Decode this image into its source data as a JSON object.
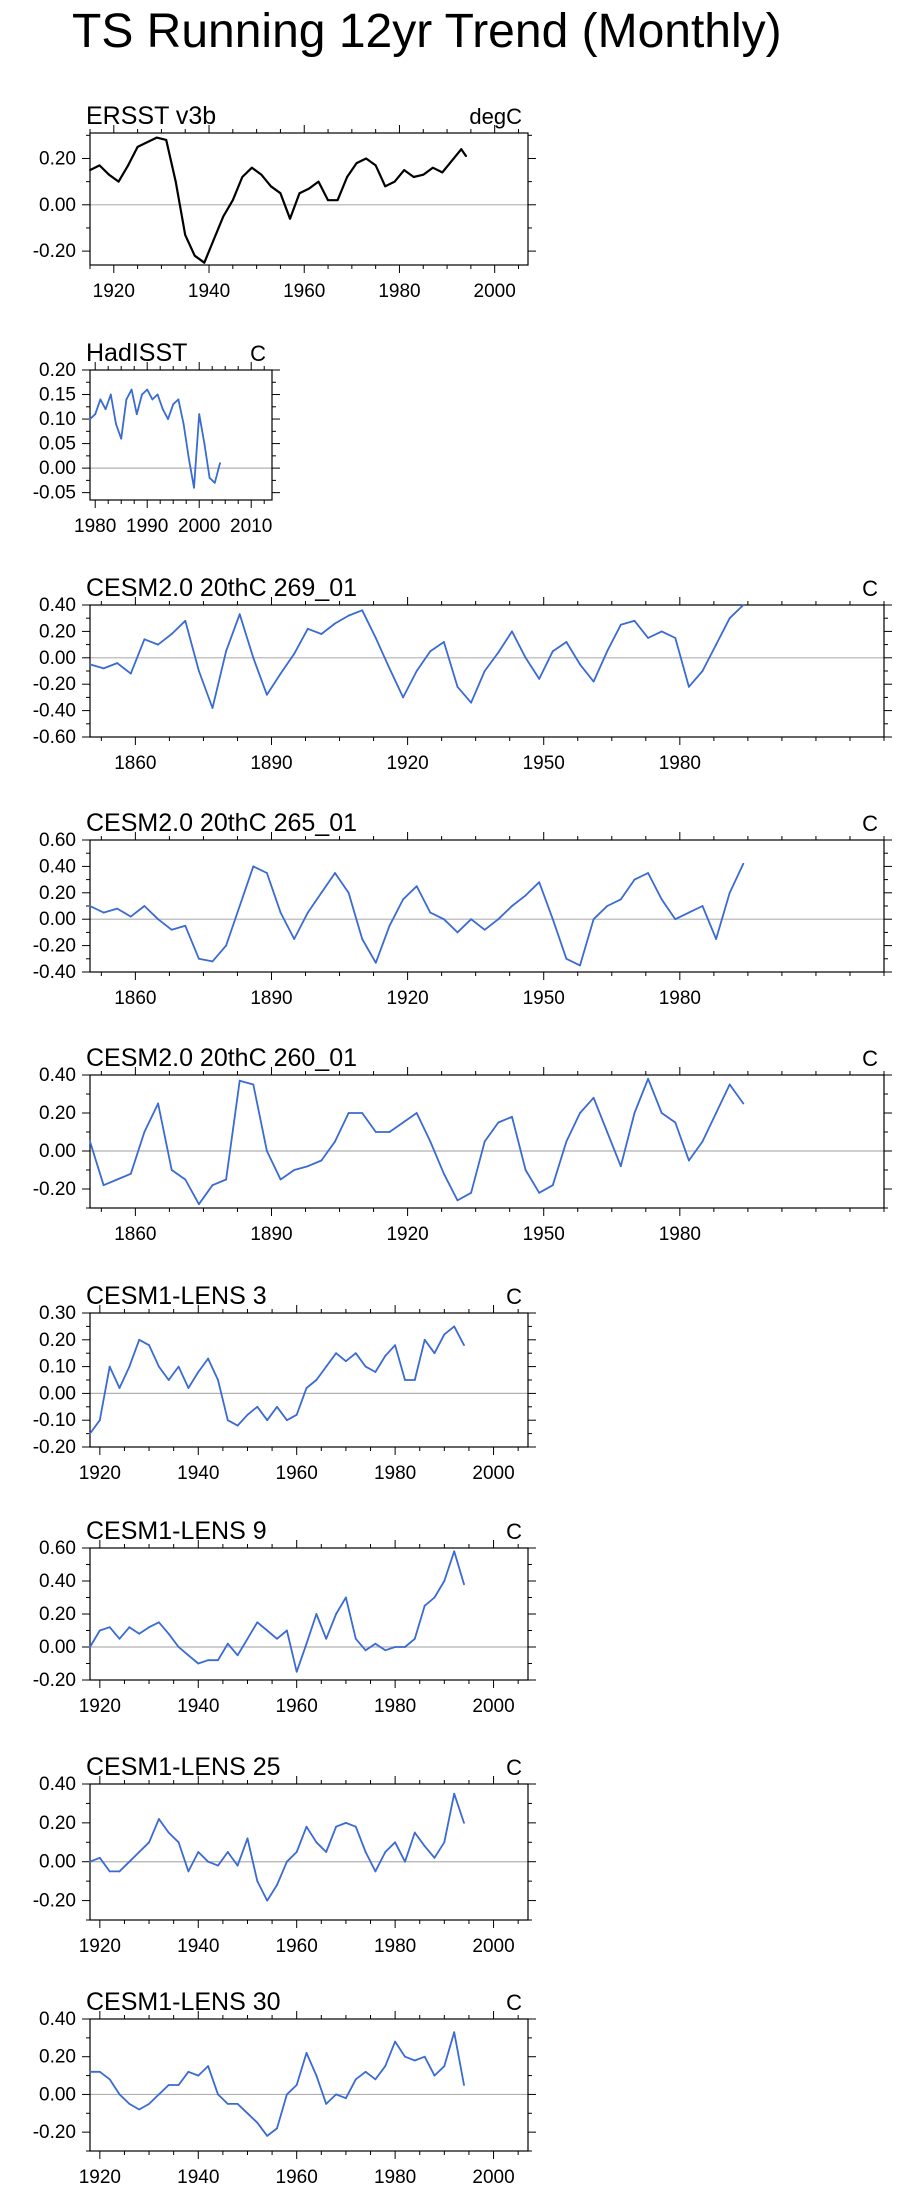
{
  "title": "TS Running 12yr Trend (Monthly)",
  "colors": {
    "obs_line": "#000000",
    "model_line": "#3a6ad4",
    "zero_line": "#b0b0b0",
    "axis": "#000000"
  },
  "chart_data": [
    {
      "type": "line",
      "title": "ERSST v3b",
      "units": "degC",
      "line_color": "#000000",
      "xlim": [
        1915,
        2007
      ],
      "ylim": [
        -0.26,
        0.31
      ],
      "x_ticks": [
        1920,
        1940,
        1960,
        1980,
        2000
      ],
      "x_tick_labels": [
        "1920",
        "1940",
        "1960",
        "1980",
        "2000"
      ],
      "y_ticks": [
        -0.2,
        0.0,
        0.2
      ],
      "y_tick_labels": [
        "-0.20",
        "0.00",
        "0.20"
      ],
      "x": [
        1915,
        1917,
        1919,
        1921,
        1923,
        1925,
        1927,
        1929,
        1931,
        1933,
        1935,
        1937,
        1939,
        1941,
        1943,
        1945,
        1947,
        1949,
        1951,
        1953,
        1955,
        1957,
        1959,
        1961,
        1963,
        1965,
        1967,
        1969,
        1971,
        1973,
        1975,
        1977,
        1979,
        1981,
        1983,
        1985,
        1987,
        1989,
        1991,
        1993,
        1994
      ],
      "y": [
        0.15,
        0.17,
        0.13,
        0.1,
        0.17,
        0.25,
        0.27,
        0.29,
        0.28,
        0.1,
        -0.13,
        -0.22,
        -0.25,
        -0.15,
        -0.05,
        0.02,
        0.12,
        0.16,
        0.13,
        0.08,
        0.05,
        -0.06,
        0.05,
        0.07,
        0.1,
        0.02,
        0.02,
        0.12,
        0.18,
        0.2,
        0.17,
        0.08,
        0.1,
        0.15,
        0.12,
        0.13,
        0.16,
        0.14,
        0.19,
        0.24,
        0.21
      ]
    },
    {
      "type": "line",
      "title": "HadISST",
      "units": "C",
      "line_color": "#3a6ad4",
      "xlim": [
        1979,
        2014
      ],
      "ylim": [
        -0.065,
        0.2
      ],
      "x_ticks": [
        1980,
        1990,
        2000,
        2010
      ],
      "x_tick_labels": [
        "1980",
        "1990",
        "2000",
        "2010"
      ],
      "y_ticks": [
        -0.05,
        0.0,
        0.05,
        0.1,
        0.15,
        0.2
      ],
      "y_tick_labels": [
        "-0.05",
        "0.00",
        "0.05",
        "0.10",
        "0.15",
        "0.20"
      ],
      "x": [
        1979,
        1980,
        1981,
        1982,
        1983,
        1984,
        1985,
        1986,
        1987,
        1988,
        1989,
        1990,
        1991,
        1992,
        1993,
        1994,
        1995,
        1996,
        1997,
        1998,
        1999,
        2000,
        2001,
        2002,
        2003,
        2004
      ],
      "y": [
        0.1,
        0.11,
        0.14,
        0.12,
        0.15,
        0.09,
        0.06,
        0.14,
        0.16,
        0.11,
        0.15,
        0.16,
        0.14,
        0.15,
        0.12,
        0.1,
        0.13,
        0.14,
        0.09,
        0.02,
        -0.04,
        0.11,
        0.05,
        -0.02,
        -0.03,
        0.01
      ]
    },
    {
      "type": "line",
      "title": "CESM2.0 20thC 269_01",
      "units": "C",
      "line_color": "#3a6ad4",
      "xlim": [
        1850,
        2025
      ],
      "ylim": [
        -0.6,
        0.4
      ],
      "x_ticks": [
        1860,
        1890,
        1920,
        1950,
        1980
      ],
      "x_tick_labels": [
        "1860",
        "1890",
        "1920",
        "1950",
        "1980"
      ],
      "y_ticks": [
        -0.6,
        -0.4,
        -0.2,
        0.0,
        0.2,
        0.4
      ],
      "y_tick_labels": [
        "-0.60",
        "-0.40",
        "-0.20",
        "0.00",
        "0.20",
        "0.40"
      ],
      "x": [
        1850,
        1853,
        1856,
        1859,
        1862,
        1865,
        1868,
        1871,
        1874,
        1877,
        1880,
        1883,
        1886,
        1889,
        1892,
        1895,
        1898,
        1901,
        1904,
        1907,
        1910,
        1913,
        1916,
        1919,
        1922,
        1925,
        1928,
        1931,
        1934,
        1937,
        1940,
        1943,
        1946,
        1949,
        1952,
        1955,
        1958,
        1961,
        1964,
        1967,
        1970,
        1973,
        1976,
        1979,
        1982,
        1985,
        1988,
        1991,
        1994
      ],
      "y": [
        -0.05,
        -0.08,
        -0.04,
        -0.12,
        0.14,
        0.1,
        0.18,
        0.28,
        -0.1,
        -0.38,
        0.05,
        0.33,
        0.0,
        -0.28,
        -0.12,
        0.03,
        0.22,
        0.18,
        0.26,
        0.32,
        0.36,
        0.15,
        -0.08,
        -0.3,
        -0.1,
        0.05,
        0.12,
        -0.22,
        -0.34,
        -0.1,
        0.04,
        0.2,
        0.0,
        -0.16,
        0.05,
        0.12,
        -0.05,
        -0.18,
        0.05,
        0.25,
        0.28,
        0.15,
        0.2,
        0.15,
        -0.22,
        -0.1,
        0.1,
        0.3,
        0.4
      ]
    },
    {
      "type": "line",
      "title": "CESM2.0 20thC 265_01",
      "units": "C",
      "line_color": "#3a6ad4",
      "xlim": [
        1850,
        2025
      ],
      "ylim": [
        -0.4,
        0.6
      ],
      "x_ticks": [
        1860,
        1890,
        1920,
        1950,
        1980
      ],
      "x_tick_labels": [
        "1860",
        "1890",
        "1920",
        "1950",
        "1980"
      ],
      "y_ticks": [
        -0.4,
        -0.2,
        0.0,
        0.2,
        0.4,
        0.6
      ],
      "y_tick_labels": [
        "-0.40",
        "-0.20",
        "0.00",
        "0.20",
        "0.40",
        "0.60"
      ],
      "x": [
        1850,
        1853,
        1856,
        1859,
        1862,
        1865,
        1868,
        1871,
        1874,
        1877,
        1880,
        1883,
        1886,
        1889,
        1892,
        1895,
        1898,
        1901,
        1904,
        1907,
        1910,
        1913,
        1916,
        1919,
        1922,
        1925,
        1928,
        1931,
        1934,
        1937,
        1940,
        1943,
        1946,
        1949,
        1952,
        1955,
        1958,
        1961,
        1964,
        1967,
        1970,
        1973,
        1976,
        1979,
        1982,
        1985,
        1988,
        1991,
        1994
      ],
      "y": [
        0.1,
        0.05,
        0.08,
        0.02,
        0.1,
        0.0,
        -0.08,
        -0.05,
        -0.3,
        -0.32,
        -0.2,
        0.1,
        0.4,
        0.35,
        0.05,
        -0.15,
        0.05,
        0.2,
        0.35,
        0.2,
        -0.15,
        -0.33,
        -0.05,
        0.15,
        0.25,
        0.05,
        0.0,
        -0.1,
        0.0,
        -0.08,
        0.0,
        0.1,
        0.18,
        0.28,
        0.0,
        -0.3,
        -0.35,
        0.0,
        0.1,
        0.15,
        0.3,
        0.35,
        0.15,
        0.0,
        0.05,
        0.1,
        -0.15,
        0.2,
        0.42
      ]
    },
    {
      "type": "line",
      "title": "CESM2.0 20thC 260_01",
      "units": "C",
      "line_color": "#3a6ad4",
      "xlim": [
        1850,
        2025
      ],
      "ylim": [
        -0.3,
        0.4
      ],
      "x_ticks": [
        1860,
        1890,
        1920,
        1950,
        1980
      ],
      "x_tick_labels": [
        "1860",
        "1890",
        "1920",
        "1950",
        "1980"
      ],
      "y_ticks": [
        -0.2,
        0.0,
        0.2,
        0.4
      ],
      "y_tick_labels": [
        "-0.20",
        "0.00",
        "0.20",
        "0.40"
      ],
      "x": [
        1850,
        1853,
        1856,
        1859,
        1862,
        1865,
        1868,
        1871,
        1874,
        1877,
        1880,
        1883,
        1886,
        1889,
        1892,
        1895,
        1898,
        1901,
        1904,
        1907,
        1910,
        1913,
        1916,
        1919,
        1922,
        1925,
        1928,
        1931,
        1934,
        1937,
        1940,
        1943,
        1946,
        1949,
        1952,
        1955,
        1958,
        1961,
        1964,
        1967,
        1970,
        1973,
        1976,
        1979,
        1982,
        1985,
        1988,
        1991,
        1994
      ],
      "y": [
        0.05,
        -0.18,
        -0.15,
        -0.12,
        0.1,
        0.25,
        -0.1,
        -0.15,
        -0.28,
        -0.18,
        -0.15,
        0.37,
        0.35,
        0.0,
        -0.15,
        -0.1,
        -0.08,
        -0.05,
        0.05,
        0.2,
        0.2,
        0.1,
        0.1,
        0.15,
        0.2,
        0.05,
        -0.12,
        -0.26,
        -0.22,
        0.05,
        0.15,
        0.18,
        -0.1,
        -0.22,
        -0.18,
        0.05,
        0.2,
        0.28,
        0.1,
        -0.08,
        0.2,
        0.38,
        0.2,
        0.15,
        -0.05,
        0.05,
        0.2,
        0.35,
        0.25
      ]
    },
    {
      "type": "line",
      "title": "CESM1-LENS 3",
      "units": "C",
      "line_color": "#3a6ad4",
      "xlim": [
        1918,
        2007
      ],
      "ylim": [
        -0.2,
        0.3
      ],
      "x_ticks": [
        1920,
        1940,
        1960,
        1980,
        2000
      ],
      "x_tick_labels": [
        "1920",
        "1940",
        "1960",
        "1980",
        "2000"
      ],
      "y_ticks": [
        -0.2,
        -0.1,
        0.0,
        0.1,
        0.2,
        0.3
      ],
      "y_tick_labels": [
        "-0.20",
        "-0.10",
        "0.00",
        "0.10",
        "0.20",
        "0.30"
      ],
      "x": [
        1918,
        1920,
        1922,
        1924,
        1926,
        1928,
        1930,
        1932,
        1934,
        1936,
        1938,
        1940,
        1942,
        1944,
        1946,
        1948,
        1950,
        1952,
        1954,
        1956,
        1958,
        1960,
        1962,
        1964,
        1966,
        1968,
        1970,
        1972,
        1974,
        1976,
        1978,
        1980,
        1982,
        1984,
        1986,
        1988,
        1990,
        1992,
        1994
      ],
      "y": [
        -0.15,
        -0.1,
        0.1,
        0.02,
        0.1,
        0.2,
        0.18,
        0.1,
        0.05,
        0.1,
        0.02,
        0.08,
        0.13,
        0.05,
        -0.1,
        -0.12,
        -0.08,
        -0.05,
        -0.1,
        -0.05,
        -0.1,
        -0.08,
        0.02,
        0.05,
        0.1,
        0.15,
        0.12,
        0.15,
        0.1,
        0.08,
        0.14,
        0.18,
        0.05,
        0.05,
        0.2,
        0.15,
        0.22,
        0.25,
        0.18
      ]
    },
    {
      "type": "line",
      "title": "CESM1-LENS 9",
      "units": "C",
      "line_color": "#3a6ad4",
      "xlim": [
        1918,
        2007
      ],
      "ylim": [
        -0.2,
        0.6
      ],
      "x_ticks": [
        1920,
        1940,
        1960,
        1980,
        2000
      ],
      "x_tick_labels": [
        "1920",
        "1940",
        "1960",
        "1980",
        "2000"
      ],
      "y_ticks": [
        -0.2,
        0.0,
        0.2,
        0.4,
        0.6
      ],
      "y_tick_labels": [
        "-0.20",
        "0.00",
        "0.20",
        "0.40",
        "0.60"
      ],
      "x": [
        1918,
        1920,
        1922,
        1924,
        1926,
        1928,
        1930,
        1932,
        1934,
        1936,
        1938,
        1940,
        1942,
        1944,
        1946,
        1948,
        1950,
        1952,
        1954,
        1956,
        1958,
        1960,
        1962,
        1964,
        1966,
        1968,
        1970,
        1972,
        1974,
        1976,
        1978,
        1980,
        1982,
        1984,
        1986,
        1988,
        1990,
        1992,
        1994
      ],
      "y": [
        0.0,
        0.1,
        0.12,
        0.05,
        0.12,
        0.08,
        0.12,
        0.15,
        0.08,
        0.0,
        -0.05,
        -0.1,
        -0.08,
        -0.08,
        0.02,
        -0.05,
        0.05,
        0.15,
        0.1,
        0.05,
        0.1,
        -0.15,
        0.02,
        0.2,
        0.05,
        0.2,
        0.3,
        0.05,
        -0.02,
        0.02,
        -0.02,
        0.0,
        0.0,
        0.05,
        0.25,
        0.3,
        0.4,
        0.58,
        0.38
      ]
    },
    {
      "type": "line",
      "title": "CESM1-LENS 25",
      "units": "C",
      "line_color": "#3a6ad4",
      "xlim": [
        1918,
        2007
      ],
      "ylim": [
        -0.3,
        0.4
      ],
      "x_ticks": [
        1920,
        1940,
        1960,
        1980,
        2000
      ],
      "x_tick_labels": [
        "1920",
        "1940",
        "1960",
        "1980",
        "2000"
      ],
      "y_ticks": [
        -0.2,
        0.0,
        0.2,
        0.4
      ],
      "y_tick_labels": [
        "-0.20",
        "0.00",
        "0.20",
        "0.40"
      ],
      "x": [
        1918,
        1920,
        1922,
        1924,
        1926,
        1928,
        1930,
        1932,
        1934,
        1936,
        1938,
        1940,
        1942,
        1944,
        1946,
        1948,
        1950,
        1952,
        1954,
        1956,
        1958,
        1960,
        1962,
        1964,
        1966,
        1968,
        1970,
        1972,
        1974,
        1976,
        1978,
        1980,
        1982,
        1984,
        1986,
        1988,
        1990,
        1992,
        1994
      ],
      "y": [
        0.0,
        0.02,
        -0.05,
        -0.05,
        0.0,
        0.05,
        0.1,
        0.22,
        0.15,
        0.1,
        -0.05,
        0.05,
        0.0,
        -0.02,
        0.05,
        -0.02,
        0.12,
        -0.1,
        -0.2,
        -0.12,
        0.0,
        0.05,
        0.18,
        0.1,
        0.05,
        0.18,
        0.2,
        0.18,
        0.05,
        -0.05,
        0.05,
        0.1,
        0.0,
        0.15,
        0.08,
        0.02,
        0.1,
        0.35,
        0.2
      ]
    },
    {
      "type": "line",
      "title": "CESM1-LENS 30",
      "units": "C",
      "line_color": "#3a6ad4",
      "xlim": [
        1918,
        2007
      ],
      "ylim": [
        -0.3,
        0.4
      ],
      "x_ticks": [
        1920,
        1940,
        1960,
        1980,
        2000
      ],
      "x_tick_labels": [
        "1920",
        "1940",
        "1960",
        "1980",
        "2000"
      ],
      "y_ticks": [
        -0.2,
        0.0,
        0.2,
        0.4
      ],
      "y_tick_labels": [
        "-0.20",
        "0.00",
        "0.20",
        "0.40"
      ],
      "x": [
        1918,
        1920,
        1922,
        1924,
        1926,
        1928,
        1930,
        1932,
        1934,
        1936,
        1938,
        1940,
        1942,
        1944,
        1946,
        1948,
        1950,
        1952,
        1954,
        1956,
        1958,
        1960,
        1962,
        1964,
        1966,
        1968,
        1970,
        1972,
        1974,
        1976,
        1978,
        1980,
        1982,
        1984,
        1986,
        1988,
        1990,
        1992,
        1994
      ],
      "y": [
        0.12,
        0.12,
        0.08,
        0.0,
        -0.05,
        -0.08,
        -0.05,
        0.0,
        0.05,
        0.05,
        0.12,
        0.1,
        0.15,
        0.0,
        -0.05,
        -0.05,
        -0.1,
        -0.15,
        -0.22,
        -0.18,
        0.0,
        0.05,
        0.22,
        0.1,
        -0.05,
        0.0,
        -0.02,
        0.08,
        0.12,
        0.08,
        0.15,
        0.28,
        0.2,
        0.18,
        0.2,
        0.1,
        0.15,
        0.33,
        0.05
      ]
    }
  ]
}
